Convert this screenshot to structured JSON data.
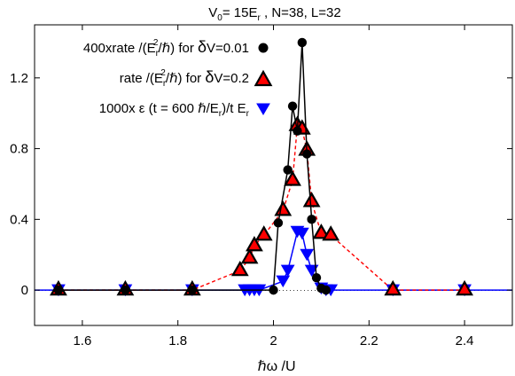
{
  "chart_data": {
    "type": "line",
    "title": "V0= 15Er , N=38, L=32",
    "title_parts": {
      "v": "V",
      "v_sub": "0",
      "eq": "= 15E",
      "e_sub": "r",
      "rest": " , N=38, L=32"
    },
    "xlabel": "ℏω /U",
    "ylabel": "",
    "xlim": [
      1.5,
      2.5
    ],
    "ylim": [
      -0.2,
      1.5
    ],
    "xticks": [
      1.6,
      1.8,
      2.0,
      2.2,
      2.4
    ],
    "xtick_labels": [
      "1.6",
      "1.8",
      "2",
      "2.2",
      "2.4"
    ],
    "yticks": [
      0,
      0.4,
      0.8,
      1.2
    ],
    "ytick_labels": [
      "0",
      "0.4",
      "0.8",
      "1.2"
    ],
    "grid": false,
    "legend_position": "top-left",
    "series": [
      {
        "name": "400xrate /(Er2/ℏ) for δV=0.01",
        "legend_parts": {
          "a": "400xrate /(E",
          "sub": "r",
          "sup": "2",
          "b": "/ℏ) for ",
          "delta": "δ",
          "c": "V=0.01"
        },
        "marker": "circle",
        "color": "#000000",
        "line_style": "solid",
        "x": [
          1.55,
          1.69,
          1.83,
          2.0,
          2.01,
          2.03,
          2.04,
          2.05,
          2.06,
          2.07,
          2.08,
          2.09,
          2.1,
          2.11
        ],
        "y": [
          0.0,
          0.0,
          0.0,
          0.0,
          0.38,
          0.68,
          1.04,
          0.9,
          1.4,
          0.77,
          0.4,
          0.07,
          0.01,
          0.0
        ]
      },
      {
        "name": "rate /(Er2/ℏ) for δV=0.2",
        "legend_parts": {
          "a": "rate /(E",
          "sub": "r",
          "sup": "2",
          "b": "/ℏ) for ",
          "delta": "δ",
          "c": "V=0.2"
        },
        "marker": "triangle-up",
        "color": "#ff0000",
        "line_style": "dashed",
        "x": [
          1.55,
          1.69,
          1.83,
          1.93,
          1.95,
          1.96,
          1.98,
          2.02,
          2.04,
          2.05,
          2.06,
          2.07,
          2.08,
          2.1,
          2.12,
          2.25,
          2.4
        ],
        "y": [
          0.0,
          0.0,
          0.0,
          0.11,
          0.18,
          0.25,
          0.31,
          0.45,
          0.62,
          0.93,
          0.91,
          0.79,
          0.5,
          0.32,
          0.31,
          0.0,
          0.0
        ]
      },
      {
        "name": "1000x ε (t = 600 ℏ/Er)/t Er",
        "legend_parts": {
          "a": "1000x ",
          "eps": "ε",
          "b": " (t = 600 ℏ/E",
          "sub1": "r",
          "c": ")/t E",
          "sub2": "r"
        },
        "marker": "triangle-down",
        "color": "#0000ff",
        "line_style": "solid",
        "x": [
          1.5,
          1.55,
          1.69,
          1.83,
          1.94,
          1.95,
          1.96,
          1.97,
          2.02,
          2.03,
          2.05,
          2.06,
          2.07,
          2.08,
          2.1,
          2.11,
          2.12,
          2.25,
          2.4,
          2.5
        ],
        "y": [
          0.0,
          0.0,
          0.0,
          0.0,
          0.0,
          0.0,
          0.0,
          0.0,
          0.05,
          0.11,
          0.33,
          0.32,
          0.2,
          0.11,
          0.01,
          0.0,
          0.0,
          0.0,
          0.0,
          0.0
        ]
      }
    ]
  }
}
